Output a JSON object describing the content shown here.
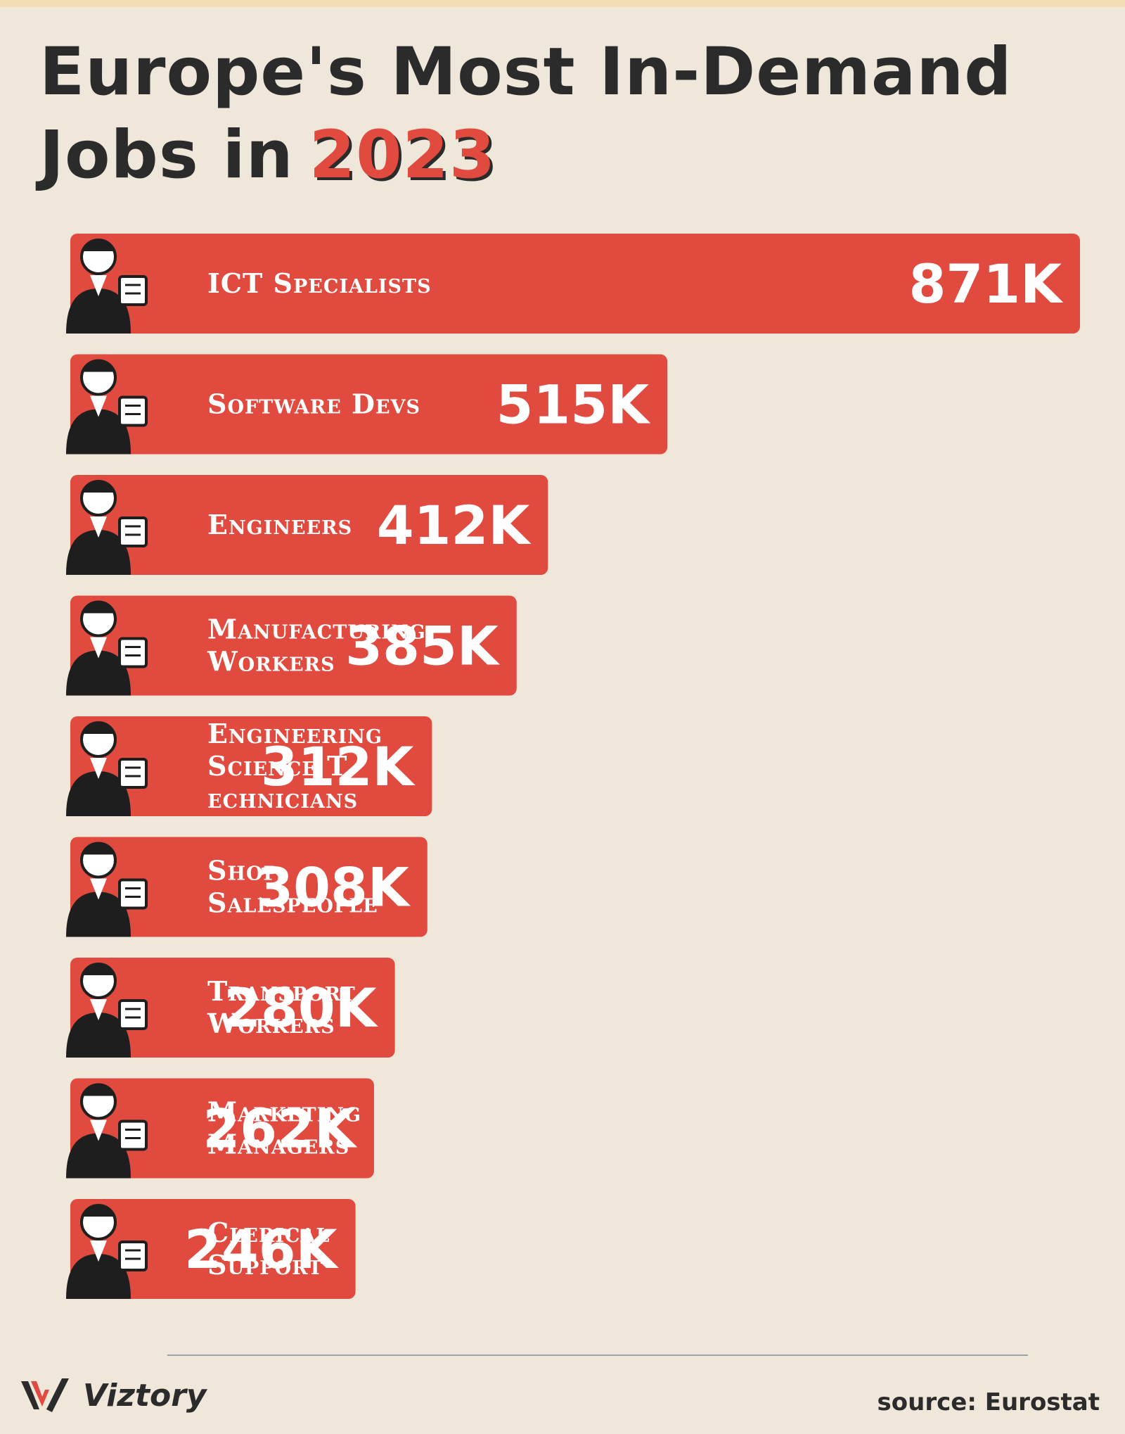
{
  "title": {
    "line1": "Europe's Most In-Demand",
    "line2_prefix": "Jobs in",
    "line2_year": "2023"
  },
  "colors": {
    "bar": "#e04a3f",
    "title": "#2b2b2b",
    "background": "#efe8da"
  },
  "chart_data": {
    "type": "bar",
    "orientation": "horizontal",
    "categories": [
      "ICT Specialists",
      "Software Devs",
      "Engineers",
      "Manufacturing Workers",
      "Engineering Science T echnicians",
      "Shop Salespeople",
      "Transport Workers",
      "Marketing Managers",
      "Clerical Support"
    ],
    "category_lines": [
      [
        "ICT Specialists"
      ],
      [
        "Software Devs"
      ],
      [
        "Engineers"
      ],
      [
        "Manufacturing",
        "Workers"
      ],
      [
        "Engineering",
        "Science T",
        "echnicians"
      ],
      [
        "Shop",
        "Salespeople"
      ],
      [
        "Transport",
        "Workers"
      ],
      [
        "Marketing",
        "Managers"
      ],
      [
        "Clerical",
        "Support"
      ]
    ],
    "values": [
      871,
      515,
      412,
      385,
      312,
      308,
      280,
      262,
      246
    ],
    "value_labels": [
      "871K",
      "515K",
      "412K",
      "385K",
      "312K",
      "308K",
      "280K",
      "262K",
      "246K"
    ],
    "icons": [
      "woman-with-laptop-icon",
      "developer-at-computer-icon",
      "engineer-with-blueprints-icon",
      "factory-worker-with-box-icon",
      "technician-with-machine-icon",
      "cashier-at-register-icon",
      "delivery-worker-with-parcel-icon",
      "marketer-with-chart-icon",
      "clerk-with-documents-icon"
    ]
  },
  "footer": {
    "brand": "Viztory",
    "source": "source: Eurostat"
  }
}
